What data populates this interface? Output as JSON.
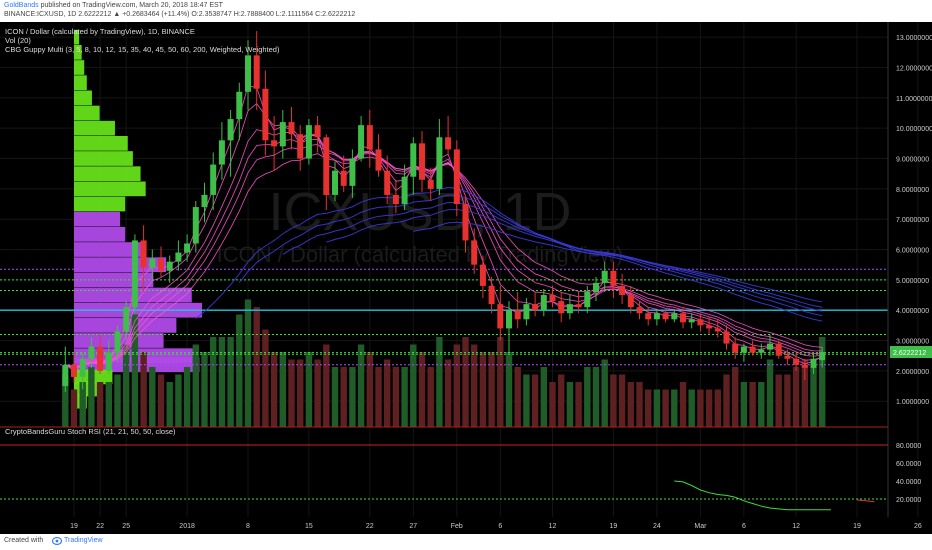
{
  "header": {
    "user": "GoldBands",
    "published": " published on TradingView.com, March 20, 2018 18:47 EST",
    "symbol_line": "BINANCE:ICXUSD, 1D  2.6222212 ▲ +0.2683464 (+11.4%) O:2.3538747 H:2.7888400 L:2.1111564 C:2.6222212"
  },
  "legend": {
    "line1": "ICON / Dollar (calculated by TradingView), 1D, BINANCE",
    "line2": "Vol (20)",
    "line3": "CBG Guppy Multi (3, 5, 8, 10, 12, 15, 35, 40, 45, 50, 60, 200, Weighted, Weighted)",
    "rsi_label": "CryptoBandsGuru Stoch RSI (21, 21, 50, 50, close)"
  },
  "watermark": {
    "big": "ICXUSD, 1D",
    "small": "ICON / Dollar (calculated by TradingView)"
  },
  "footer": {
    "created": "Created with",
    "brand": "TradingView"
  },
  "colors": {
    "bg": "#000000",
    "up": "#3fbf4a",
    "down": "#e8322f",
    "profile_green": "#66e019",
    "profile_purple": "#b04ae8",
    "guppy_short": "#ff55d0",
    "guppy_long": "#3a3ad8",
    "cyan_line": "#22c4e0",
    "last_price_tag": "#3fbf4a"
  },
  "chart_data": {
    "type": "candlestick",
    "price_axis_ticks": [
      "13.0000000",
      "12.0000000",
      "11.0000000",
      "10.0000000",
      "9.0000000",
      "8.0000000",
      "7.0000000",
      "6.0000000",
      "5.0000000",
      "4.0000000",
      "3.0000000",
      "2.0000000",
      "1.0000000"
    ],
    "price_tick_values": [
      13,
      12,
      11,
      10,
      9,
      8,
      7,
      6,
      5,
      4,
      3,
      2,
      1
    ],
    "price_range": [
      0.15,
      13.5
    ],
    "last_price_label": "2.6222212",
    "last_price": 2.6222212,
    "time_axis_ticks": [
      "19",
      "22",
      "25",
      "2018",
      "8",
      "15",
      "22",
      "27",
      "Feb",
      "6",
      "12",
      "19",
      "24",
      "Mar",
      "6",
      "12",
      "19",
      "26"
    ],
    "time_tick_days": [
      0,
      3,
      6,
      13,
      20,
      27,
      34,
      39,
      44,
      49,
      55,
      62,
      67,
      72,
      77,
      83,
      90,
      97
    ],
    "first_candle_day": -1,
    "candles_ohlc": [
      [
        1.5,
        2.8,
        1.3,
        2.2
      ],
      [
        2.2,
        2.6,
        1.6,
        1.8
      ],
      [
        1.8,
        2.6,
        1.4,
        2.4
      ],
      [
        2.4,
        3.1,
        2.1,
        2.8
      ],
      [
        2.8,
        3.2,
        1.9,
        2.0
      ],
      [
        2.0,
        3.0,
        1.9,
        2.6
      ],
      [
        2.6,
        3.5,
        2.3,
        3.3
      ],
      [
        3.3,
        4.3,
        3.0,
        4.1
      ],
      [
        4.1,
        6.5,
        3.9,
        6.3
      ],
      [
        6.3,
        6.8,
        4.6,
        5.4
      ],
      [
        5.4,
        6.0,
        5.0,
        5.7
      ],
      [
        5.7,
        6.1,
        5.1,
        5.3
      ],
      [
        5.3,
        5.8,
        4.9,
        5.6
      ],
      [
        5.6,
        6.3,
        5.3,
        5.9
      ],
      [
        5.9,
        6.5,
        5.6,
        6.2
      ],
      [
        6.2,
        7.6,
        5.9,
        7.4
      ],
      [
        7.4,
        8.2,
        6.9,
        7.8
      ],
      [
        7.8,
        9.2,
        7.3,
        8.8
      ],
      [
        8.8,
        10.2,
        8.3,
        9.6
      ],
      [
        9.6,
        10.6,
        8.4,
        10.3
      ],
      [
        10.3,
        11.5,
        9.6,
        11.2
      ],
      [
        11.2,
        12.9,
        10.6,
        12.4
      ],
      [
        12.4,
        13.2,
        10.6,
        11.3
      ],
      [
        11.3,
        11.9,
        9.1,
        9.6
      ],
      [
        9.6,
        10.4,
        8.6,
        9.4
      ],
      [
        9.4,
        10.6,
        9.0,
        10.2
      ],
      [
        10.2,
        10.7,
        9.3,
        9.8
      ],
      [
        9.8,
        10.1,
        8.6,
        9.0
      ],
      [
        9.0,
        10.3,
        8.8,
        10.1
      ],
      [
        10.1,
        10.4,
        9.2,
        9.7
      ],
      [
        9.7,
        9.8,
        7.3,
        7.8
      ],
      [
        7.8,
        8.9,
        7.6,
        8.6
      ],
      [
        8.6,
        9.1,
        7.9,
        8.1
      ],
      [
        8.1,
        9.3,
        7.7,
        9.0
      ],
      [
        9.0,
        10.4,
        8.9,
        10.1
      ],
      [
        10.1,
        10.6,
        8.7,
        9.3
      ],
      [
        9.3,
        9.8,
        8.4,
        8.6
      ],
      [
        8.6,
        9.1,
        7.5,
        7.8
      ],
      [
        7.8,
        8.3,
        7.2,
        7.5
      ],
      [
        7.5,
        8.8,
        7.3,
        8.4
      ],
      [
        8.4,
        9.7,
        7.8,
        9.5
      ],
      [
        9.5,
        9.9,
        7.9,
        8.3
      ],
      [
        8.3,
        8.7,
        7.6,
        8.0
      ],
      [
        8.0,
        10.3,
        7.8,
        9.7
      ],
      [
        9.7,
        10.4,
        9.1,
        9.3
      ],
      [
        9.3,
        9.6,
        7.1,
        7.5
      ],
      [
        7.5,
        7.8,
        5.9,
        6.3
      ],
      [
        6.3,
        6.7,
        5.2,
        5.5
      ],
      [
        5.5,
        5.8,
        4.4,
        4.8
      ],
      [
        4.8,
        5.1,
        3.9,
        4.2
      ],
      [
        4.2,
        4.8,
        3.0,
        3.4
      ],
      [
        3.4,
        4.3,
        2.6,
        4.0
      ],
      [
        4.0,
        4.6,
        3.4,
        3.7
      ],
      [
        3.7,
        4.4,
        3.5,
        4.2
      ],
      [
        4.2,
        4.6,
        3.8,
        4.0
      ],
      [
        4.0,
        4.7,
        3.8,
        4.5
      ],
      [
        4.5,
        4.8,
        4.1,
        4.3
      ],
      [
        4.3,
        4.6,
        3.6,
        3.9
      ],
      [
        3.9,
        4.5,
        3.7,
        4.2
      ],
      [
        4.2,
        4.6,
        3.9,
        4.1
      ],
      [
        4.1,
        4.8,
        3.9,
        4.6
      ],
      [
        4.6,
        5.1,
        4.3,
        4.9
      ],
      [
        4.9,
        5.6,
        4.6,
        5.3
      ],
      [
        5.3,
        5.6,
        4.4,
        4.8
      ],
      [
        4.8,
        5.2,
        4.2,
        4.5
      ],
      [
        4.5,
        4.8,
        3.9,
        4.1
      ],
      [
        4.1,
        4.3,
        3.7,
        3.9
      ],
      [
        3.9,
        4.1,
        3.5,
        3.7
      ],
      [
        3.7,
        4.0,
        3.5,
        3.9
      ],
      [
        3.9,
        4.0,
        3.6,
        3.7
      ],
      [
        3.7,
        4.0,
        3.6,
        3.9
      ],
      [
        3.9,
        4.1,
        3.4,
        3.6
      ],
      [
        3.6,
        3.9,
        3.4,
        3.7
      ],
      [
        3.7,
        3.9,
        3.3,
        3.5
      ],
      [
        3.5,
        3.8,
        3.2,
        3.4
      ],
      [
        3.4,
        3.7,
        3.1,
        3.3
      ],
      [
        3.3,
        3.5,
        2.7,
        2.9
      ],
      [
        2.9,
        3.1,
        2.4,
        2.6
      ],
      [
        2.6,
        2.9,
        2.3,
        2.8
      ],
      [
        2.8,
        3.0,
        2.5,
        2.6
      ],
      [
        2.6,
        2.9,
        2.4,
        2.7
      ],
      [
        2.7,
        3.2,
        2.5,
        2.9
      ],
      [
        2.9,
        3.0,
        2.4,
        2.5
      ],
      [
        2.5,
        2.7,
        2.2,
        2.4
      ],
      [
        2.4,
        2.6,
        2.0,
        2.2
      ],
      [
        2.2,
        2.4,
        1.7,
        2.1
      ],
      [
        2.1,
        2.6,
        1.9,
        2.4
      ],
      [
        2.354,
        2.789,
        2.111,
        2.622
      ]
    ],
    "volume": [
      0.35,
      0.25,
      0.3,
      0.4,
      0.3,
      0.3,
      0.35,
      0.55,
      0.75,
      0.5,
      0.4,
      0.35,
      0.3,
      0.35,
      0.4,
      0.55,
      0.5,
      0.6,
      0.6,
      0.6,
      0.75,
      0.85,
      0.8,
      0.65,
      0.5,
      0.5,
      0.45,
      0.45,
      0.5,
      0.45,
      0.55,
      0.4,
      0.4,
      0.4,
      0.55,
      0.5,
      0.4,
      0.45,
      0.4,
      0.4,
      0.55,
      0.5,
      0.4,
      0.6,
      0.45,
      0.55,
      0.6,
      0.55,
      0.5,
      0.5,
      0.6,
      0.5,
      0.4,
      0.35,
      0.35,
      0.4,
      0.3,
      0.35,
      0.3,
      0.3,
      0.4,
      0.4,
      0.45,
      0.35,
      0.35,
      0.3,
      0.3,
      0.25,
      0.25,
      0.25,
      0.25,
      0.3,
      0.25,
      0.25,
      0.25,
      0.25,
      0.35,
      0.4,
      0.3,
      0.3,
      0.3,
      0.45,
      0.35,
      0.35,
      0.4,
      0.45,
      0.4,
      0.6
    ],
    "volume_range": [
      0,
      2.7
    ],
    "volume_profile": [
      {
        "price": 13.0,
        "size": 0.04,
        "color": "green"
      },
      {
        "price": 12.5,
        "size": 0.06,
        "color": "green"
      },
      {
        "price": 12.0,
        "size": 0.08,
        "color": "green"
      },
      {
        "price": 11.5,
        "size": 0.1,
        "color": "green"
      },
      {
        "price": 11.0,
        "size": 0.14,
        "color": "green"
      },
      {
        "price": 10.5,
        "size": 0.2,
        "color": "green"
      },
      {
        "price": 10.0,
        "size": 0.32,
        "color": "green"
      },
      {
        "price": 9.5,
        "size": 0.42,
        "color": "green"
      },
      {
        "price": 9.0,
        "size": 0.46,
        "color": "green"
      },
      {
        "price": 8.5,
        "size": 0.52,
        "color": "green"
      },
      {
        "price": 8.0,
        "size": 0.56,
        "color": "green"
      },
      {
        "price": 7.5,
        "size": 0.4,
        "color": "green"
      },
      {
        "price": 7.0,
        "size": 0.36,
        "color": "purple"
      },
      {
        "price": 6.5,
        "size": 0.4,
        "color": "purple"
      },
      {
        "price": 6.0,
        "size": 0.56,
        "color": "purple"
      },
      {
        "price": 5.5,
        "size": 0.72,
        "color": "purple"
      },
      {
        "price": 5.0,
        "size": 0.62,
        "color": "purple"
      },
      {
        "price": 4.5,
        "size": 0.92,
        "color": "purple"
      },
      {
        "price": 4.0,
        "size": 1.0,
        "color": "purple"
      },
      {
        "price": 3.5,
        "size": 0.8,
        "color": "purple"
      },
      {
        "price": 3.0,
        "size": 0.7,
        "color": "purple"
      },
      {
        "price": 2.5,
        "size": 0.94,
        "color": "purple"
      },
      {
        "price": 2.2,
        "size": 0.98,
        "color": "purple"
      },
      {
        "price": 1.8,
        "size": 0.3,
        "color": "green"
      },
      {
        "price": 1.4,
        "size": 0.2,
        "color": "green"
      },
      {
        "price": 1.0,
        "size": 0.1,
        "color": "green"
      }
    ],
    "horizontal_levels": [
      {
        "price": 5.35,
        "color": "purple"
      },
      {
        "price": 5.0,
        "color": "green"
      },
      {
        "price": 4.65,
        "color": "green"
      },
      {
        "price": 4.0,
        "color": "cyan"
      },
      {
        "price": 3.2,
        "color": "green"
      },
      {
        "price": 2.6,
        "color": "green"
      },
      {
        "price": 2.55,
        "color": "green"
      },
      {
        "price": 2.2,
        "color": "purple"
      }
    ],
    "stoch_rsi": {
      "ticks": [
        "80.0000",
        "60.0000",
        "40.0000",
        "20.0000"
      ],
      "tick_values": [
        80,
        60,
        40,
        20
      ],
      "range": [
        0,
        100
      ],
      "upper_band": 80,
      "lower_band": 20,
      "k_line": [
        40,
        39,
        35,
        30,
        27,
        25,
        24,
        22,
        18,
        15,
        12,
        10,
        9,
        8,
        8,
        8,
        8,
        8,
        8
      ],
      "k_line_start_day": 69,
      "d_line": [
        19,
        18,
        17
      ],
      "d_line_start_day": 90
    }
  }
}
